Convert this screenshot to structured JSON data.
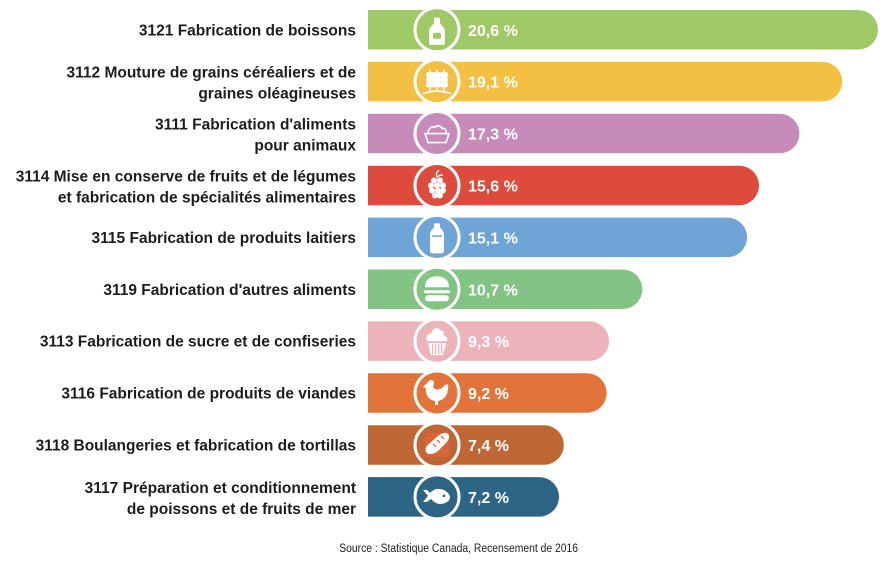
{
  "chart_data": {
    "type": "bar",
    "orientation": "horizontal",
    "title": "",
    "xlabel": "",
    "ylabel": "",
    "value_suffix": " %",
    "decimal_separator": ",",
    "categories": [
      [
        "3121 Fabrication de boissons"
      ],
      [
        "3112 Mouture de grains céréaliers et de",
        "graines oléagineuses"
      ],
      [
        "3111 Fabrication d'aliments",
        "pour animaux"
      ],
      [
        "3114 Mise en conserve de fruits et de légumes",
        "et fabrication de spécialités alimentaires"
      ],
      [
        "3115 Fabrication de produits laitiers"
      ],
      [
        "3119 Fabrication d'autres aliments"
      ],
      [
        "3113 Fabrication de sucre et de confiseries"
      ],
      [
        "3116 Fabrication de produits de viandes"
      ],
      [
        "3118 Boulangeries et fabrication de tortillas"
      ],
      [
        "3117 Préparation et conditionnement",
        "de poissons et de fruits de mer"
      ]
    ],
    "values": [
      20.6,
      19.1,
      17.3,
      15.6,
      15.1,
      10.7,
      9.3,
      9.2,
      7.4,
      7.2
    ],
    "value_labels": [
      "20,6 %",
      "19,1 %",
      "17,3 %",
      "15,6 %",
      "15,1 %",
      "10,7 %",
      "9,3 %",
      "9,2 %",
      "7,4 %",
      "7,2 %"
    ],
    "colors": [
      "#9fc866",
      "#f3c043",
      "#c68bb8",
      "#dc4b3b",
      "#6fa4d6",
      "#83c485",
      "#ecb3bb",
      "#e2743b",
      "#bf6635",
      "#2c6586"
    ],
    "icons": [
      "bottle-icon",
      "wheat-icon",
      "pet-bowl-icon",
      "raspberry-icon",
      "milk-bottle-icon",
      "burger-icon",
      "cupcake-icon",
      "chicken-icon",
      "bread-icon",
      "fish-icon"
    ],
    "grid": false,
    "legend": "none",
    "source": "Source : Statistique Canada, Recensement de 2016"
  }
}
